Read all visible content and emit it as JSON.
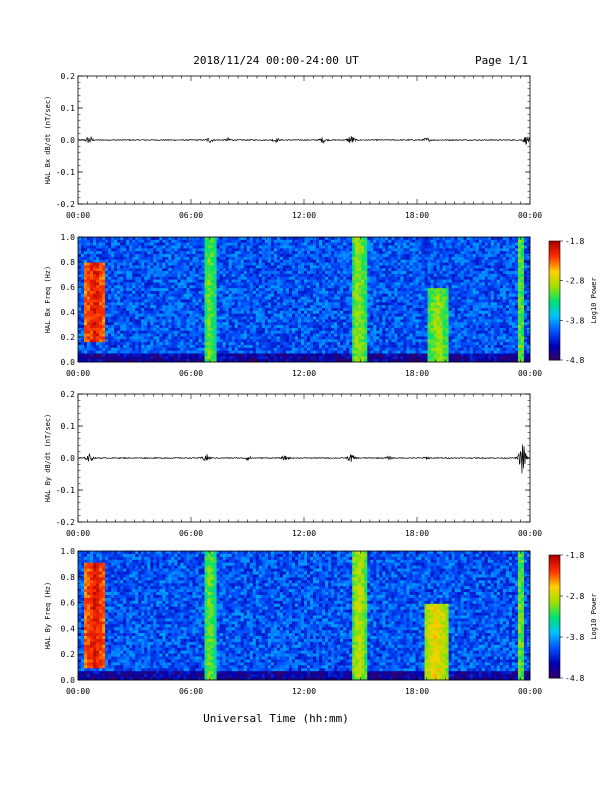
{
  "header": {
    "date_range": "2018/11/24  00:00-24:00 UT",
    "page": "Page 1/1"
  },
  "x_axis": {
    "label": "Universal Time (hh:mm)",
    "ticks": [
      "00:00",
      "06:00",
      "12:00",
      "18:00",
      "00:00"
    ]
  },
  "colors": {
    "colormap": [
      "#3a0060",
      "#0000b0",
      "#0050ff",
      "#00c0ff",
      "#00e070",
      "#a0e000",
      "#ffd000",
      "#ff3000",
      "#b00000"
    ],
    "trace": "#000000"
  },
  "chart_data": [
    {
      "type": "line",
      "ylabel": "HAL Bx dB/dt (nT/sec)",
      "xlim": [
        0,
        24
      ],
      "ylim": [
        -0.2,
        0.2
      ],
      "yticks": [
        "0.2",
        "0.1",
        "0.0",
        "-0.1",
        "-0.2"
      ],
      "ytick_values": [
        0.2,
        0.1,
        0.0,
        -0.1,
        -0.2
      ],
      "amplitude_profile": [
        {
          "t": 0.6,
          "amp": 0.012
        },
        {
          "t": 7.0,
          "amp": 0.008
        },
        {
          "t": 8.0,
          "amp": 0.005
        },
        {
          "t": 10.5,
          "amp": 0.006
        },
        {
          "t": 13.0,
          "amp": 0.008
        },
        {
          "t": 14.5,
          "amp": 0.014
        },
        {
          "t": 18.5,
          "amp": 0.006
        },
        {
          "t": 23.8,
          "amp": 0.012
        }
      ]
    },
    {
      "type": "heatmap",
      "ylabel": "HAL Bx Freq (Hz)",
      "xlim": [
        0,
        24
      ],
      "ylim": [
        0,
        1.0
      ],
      "yticks": [
        "1.0",
        "0.8",
        "0.6",
        "0.4",
        "0.2",
        "0.0"
      ],
      "ytick_values": [
        1.0,
        0.8,
        0.6,
        0.4,
        0.2,
        0.0
      ],
      "colorbar": {
        "label": "Log10 Power",
        "ticks": [
          "-1.8",
          "-2.8",
          "-3.8",
          "-4.8"
        ],
        "tick_values": [
          -1.8,
          -2.8,
          -3.8,
          -4.8
        ],
        "range": [
          -4.8,
          -1.8
        ]
      },
      "features": [
        {
          "t0": 0.3,
          "t1": 1.5,
          "f0": 0.15,
          "f1": 0.8,
          "level": -2.0
        },
        {
          "t0": 6.7,
          "t1": 7.3,
          "f0": 0.0,
          "f1": 1.0,
          "level": -3.0
        },
        {
          "t0": 14.5,
          "t1": 15.3,
          "f0": 0.0,
          "f1": 1.0,
          "level": -2.9
        },
        {
          "t0": 18.6,
          "t1": 19.6,
          "f0": 0.0,
          "f1": 0.6,
          "level": -2.9
        },
        {
          "t0": 23.3,
          "t1": 23.7,
          "f0": 0.0,
          "f1": 1.0,
          "level": -3.0
        }
      ]
    },
    {
      "type": "line",
      "ylabel": "HAL By dB/dt (nT/sec)",
      "xlim": [
        0,
        24
      ],
      "ylim": [
        -0.2,
        0.2
      ],
      "yticks": [
        "0.2",
        "0.1",
        "0.0",
        "-0.1",
        "-0.2"
      ],
      "ytick_values": [
        0.2,
        0.1,
        0.0,
        -0.1,
        -0.2
      ],
      "amplitude_profile": [
        {
          "t": 0.6,
          "amp": 0.012
        },
        {
          "t": 6.8,
          "amp": 0.012
        },
        {
          "t": 9.0,
          "amp": 0.006
        },
        {
          "t": 11.0,
          "amp": 0.006
        },
        {
          "t": 14.5,
          "amp": 0.012
        },
        {
          "t": 16.5,
          "amp": 0.004
        },
        {
          "t": 18.5,
          "amp": 0.003
        },
        {
          "t": 23.6,
          "amp": 0.05
        }
      ]
    },
    {
      "type": "heatmap",
      "ylabel": "HAL By Freq (Hz)",
      "xlim": [
        0,
        24
      ],
      "ylim": [
        0,
        1.0
      ],
      "yticks": [
        "1.0",
        "0.8",
        "0.6",
        "0.4",
        "0.2",
        "0.0"
      ],
      "ytick_values": [
        1.0,
        0.8,
        0.6,
        0.4,
        0.2,
        0.0
      ],
      "colorbar": {
        "label": "Log10 Power",
        "ticks": [
          "-1.8",
          "-2.8",
          "-3.8",
          "-4.8"
        ],
        "tick_values": [
          -1.8,
          -2.8,
          -3.8,
          -4.8
        ],
        "range": [
          -4.8,
          -1.8
        ]
      },
      "features": [
        {
          "t0": 0.3,
          "t1": 1.5,
          "f0": 0.1,
          "f1": 0.9,
          "level": -2.0
        },
        {
          "t0": 6.7,
          "t1": 7.3,
          "f0": 0.0,
          "f1": 1.0,
          "level": -3.0
        },
        {
          "t0": 14.5,
          "t1": 15.3,
          "f0": 0.0,
          "f1": 1.0,
          "level": -2.8
        },
        {
          "t0": 18.4,
          "t1": 19.6,
          "f0": 0.0,
          "f1": 0.6,
          "level": -2.6
        },
        {
          "t0": 23.3,
          "t1": 23.7,
          "f0": 0.0,
          "f1": 1.0,
          "level": -3.0
        }
      ]
    }
  ]
}
